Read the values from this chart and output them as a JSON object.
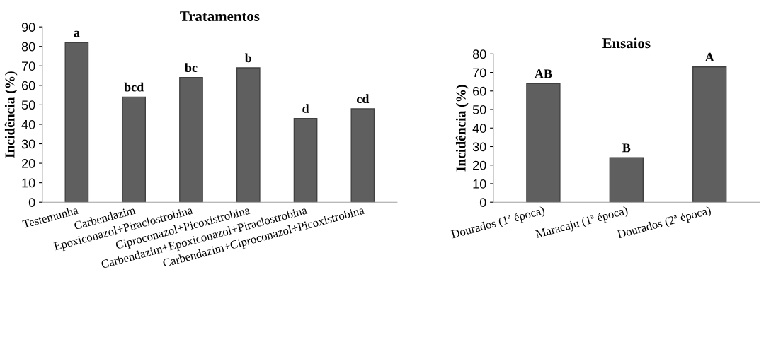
{
  "chart_data": [
    {
      "type": "bar",
      "title": "Tratamentos",
      "ylabel": "Incidência (%)",
      "categories": [
        "Testemunha",
        "Carbendazim",
        "Epoxiconazol+Piraclostrobina",
        "Ciproconazol+Picoxistrobina",
        "Carbendazim+Epoxiconazol+Piraclostrobina",
        "Carbendazim+Ciproconazol+Picoxistrobina"
      ],
      "values": [
        82,
        54,
        64,
        69,
        43,
        48
      ],
      "color": "#5f5f5f",
      "value_labels": [
        "a",
        "bcd",
        "bc",
        "b",
        "d",
        "cd"
      ],
      "ylim": [
        0,
        90
      ],
      "yticks": [
        0,
        10,
        20,
        30,
        40,
        50,
        60,
        70,
        80,
        90
      ],
      "grid": false
    },
    {
      "type": "bar",
      "title": "Ensaios",
      "ylabel": "Incidência (%)",
      "categories": [
        "Dourados (1ª época)",
        "Maracaju (1ª época)",
        "Dourados (2ª época)"
      ],
      "values": [
        64,
        24,
        73
      ],
      "color": "#5f5f5f",
      "value_labels": [
        "AB",
        "B",
        "A"
      ],
      "ylim": [
        0,
        80
      ],
      "yticks": [
        0,
        10,
        20,
        30,
        40,
        50,
        60,
        70,
        80
      ],
      "grid": false
    }
  ]
}
